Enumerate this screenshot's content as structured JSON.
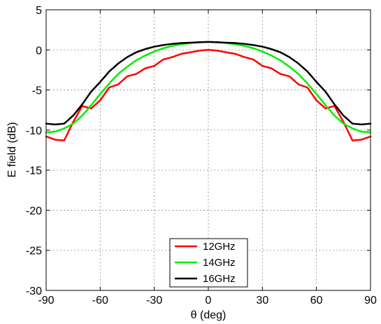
{
  "chart_data": {
    "type": "line",
    "title": "",
    "xlabel": "θ (deg)",
    "ylabel": "E field (dB)",
    "xlim": [
      -90,
      90
    ],
    "ylim": [
      -30,
      5
    ],
    "xticks": [
      -90,
      -60,
      -30,
      0,
      30,
      60,
      90
    ],
    "yticks": [
      5,
      0,
      -5,
      -10,
      -15,
      -20,
      -25,
      -30
    ],
    "grid": true,
    "legend_position": "bottom-center",
    "x": [
      -90,
      -85,
      -80,
      -75,
      -70,
      -65,
      -60,
      -55,
      -50,
      -45,
      -40,
      -35,
      -30,
      -25,
      -20,
      -15,
      -10,
      -5,
      0,
      5,
      10,
      15,
      20,
      25,
      30,
      35,
      40,
      45,
      50,
      55,
      60,
      65,
      70,
      75,
      80,
      85,
      90
    ],
    "series": [
      {
        "name": "12GHz",
        "color": "#ff0000",
        "values": [
          -10.8,
          -11.2,
          -11.3,
          -9.0,
          -7.0,
          -7.3,
          -6.3,
          -4.7,
          -4.3,
          -3.3,
          -3.0,
          -2.3,
          -2.0,
          -1.2,
          -0.9,
          -0.5,
          -0.3,
          -0.1,
          0.0,
          -0.1,
          -0.3,
          -0.5,
          -0.9,
          -1.2,
          -2.0,
          -2.3,
          -3.0,
          -3.3,
          -4.3,
          -4.7,
          -6.3,
          -7.3,
          -7.0,
          -9.0,
          -11.3,
          -11.2,
          -10.8
        ]
      },
      {
        "name": "14GHz",
        "color": "#00ee00",
        "values": [
          -10.3,
          -10.2,
          -9.8,
          -9.2,
          -8.2,
          -6.9,
          -5.5,
          -4.2,
          -3.0,
          -2.1,
          -1.3,
          -0.7,
          -0.2,
          0.2,
          0.5,
          0.7,
          0.85,
          0.95,
          1.0,
          0.95,
          0.85,
          0.7,
          0.5,
          0.2,
          -0.2,
          -0.7,
          -1.3,
          -2.1,
          -3.0,
          -4.2,
          -5.5,
          -6.9,
          -8.2,
          -9.2,
          -9.8,
          -10.2,
          -10.3
        ]
      },
      {
        "name": "16GHz",
        "color": "#000000",
        "values": [
          -9.2,
          -9.3,
          -9.2,
          -8.2,
          -6.8,
          -5.2,
          -4.0,
          -2.7,
          -1.7,
          -0.9,
          -0.3,
          0.1,
          0.4,
          0.6,
          0.75,
          0.85,
          0.9,
          0.95,
          1.0,
          0.95,
          0.9,
          0.85,
          0.75,
          0.6,
          0.4,
          0.1,
          -0.3,
          -0.9,
          -1.7,
          -2.7,
          -4.0,
          -5.2,
          -6.8,
          -8.2,
          -9.2,
          -9.3,
          -9.2
        ]
      }
    ]
  }
}
